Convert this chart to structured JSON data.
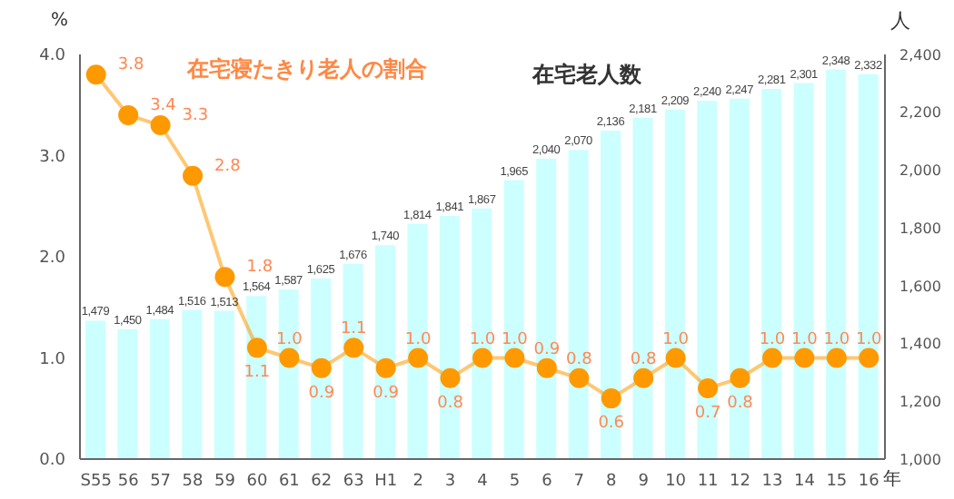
{
  "chart_data": {
    "type": "bar",
    "categories": [
      "S55",
      "56",
      "57",
      "58",
      "59",
      "60",
      "61",
      "62",
      "63",
      "H1",
      "2",
      "3",
      "4",
      "5",
      "6",
      "7",
      "8",
      "9",
      "10",
      "11",
      "12",
      "13",
      "14",
      "15",
      "16"
    ],
    "xlabel": "年",
    "ylabel": "%",
    "y2label": "人",
    "series": [
      {
        "name": "在宅老人数",
        "axis": "y2",
        "color": "#ccffff",
        "values": [
          1479,
          1450,
          1484,
          1516,
          1513,
          1564,
          1587,
          1625,
          1676,
          1740,
          1814,
          1841,
          1867,
          1965,
          2040,
          2070,
          2136,
          2181,
          2209,
          2240,
          2247,
          2281,
          2301,
          2348,
          2332
        ],
        "value_labels": [
          "1,479",
          "1,450",
          "1,484",
          "1,516",
          "1,513",
          "1,564",
          "1,587",
          "1,625",
          "1,676",
          "1,740",
          "1,814",
          "1,841",
          "1,867",
          "1,965",
          "2,040",
          "2,070",
          "2,136",
          "2,181",
          "2,209",
          "2,240",
          "2,247",
          "2,281",
          "2,301",
          "2,348",
          "2,332"
        ]
      },
      {
        "name": "在宅寝たきり老人の割合",
        "type": "line",
        "color": "#ff9900",
        "marker": "circle",
        "values": [
          3.8,
          3.4,
          3.3,
          2.8,
          1.8,
          1.1,
          1.0,
          0.9,
          1.1,
          0.9,
          1.0,
          0.8,
          1.0,
          1.0,
          0.9,
          0.8,
          0.6,
          0.8,
          1.0,
          0.7,
          0.8,
          1.0,
          1.0,
          1.0,
          1.0
        ],
        "value_labels": [
          "3.8",
          "3.4",
          "3.3",
          "2.8",
          "1.8",
          "1.1",
          "1.0",
          "0.9",
          "1.1",
          "0.9",
          "1.0",
          "0.8",
          "1.0",
          "1.0",
          "0.9",
          "0.8",
          "0.6",
          "0.8",
          "1.0",
          "0.7",
          "0.8",
          "1.0",
          "1.0",
          "1.0",
          "1.0"
        ]
      }
    ],
    "ylim": [
      0,
      4
    ],
    "yticks": [
      {
        "value": 0,
        "label": "0.0"
      },
      {
        "value": 1,
        "label": "1.0"
      },
      {
        "value": 2,
        "label": "2.0"
      },
      {
        "value": 3,
        "label": "3.0"
      },
      {
        "value": 4,
        "label": "4.0"
      }
    ],
    "y2lim": [
      1000,
      2400
    ],
    "y2ticks": [
      {
        "value": 1000,
        "label": "1,000"
      },
      {
        "value": 1200,
        "label": "1,200"
      },
      {
        "value": 1400,
        "label": "1,400"
      },
      {
        "value": 1600,
        "label": "1,600"
      },
      {
        "value": 1800,
        "label": "1,800"
      },
      {
        "value": 2000,
        "label": "2,000"
      },
      {
        "value": 2200,
        "label": "2,200"
      },
      {
        "value": 2400,
        "label": "2,400"
      }
    ],
    "grid": false,
    "legend": false
  }
}
